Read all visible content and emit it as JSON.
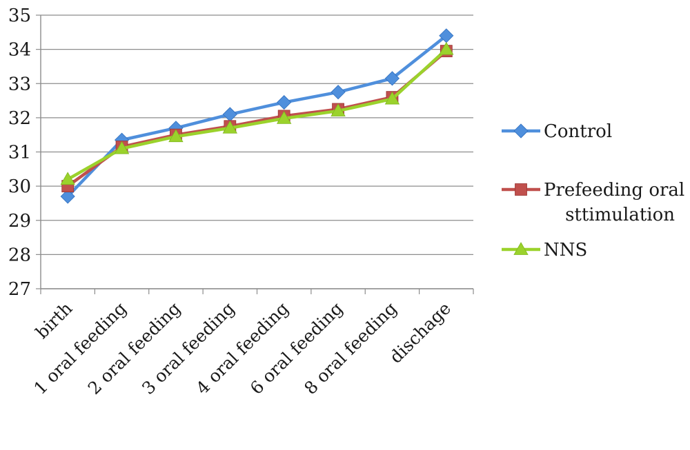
{
  "chart_data": {
    "type": "line",
    "categories": [
      "birth",
      "1 oral feeding",
      "2 oral feeding",
      "3 oral feeding",
      "4 oral feeding",
      "6 oral feeding",
      "8 oral feeding",
      "dischage"
    ],
    "series": [
      {
        "name": "Control",
        "color": "#4f8fdc",
        "marker": "diamond",
        "values": [
          29.7,
          31.35,
          31.7,
          32.1,
          32.45,
          32.75,
          33.15,
          34.4
        ]
      },
      {
        "name": "Prefeeding oral sttimulation",
        "legend_lines": [
          "Prefeeding oral",
          "sttimulation"
        ],
        "color": "#c0504d",
        "marker": "square",
        "values": [
          30.0,
          31.15,
          31.5,
          31.75,
          32.05,
          32.25,
          32.6,
          33.95
        ]
      },
      {
        "name": "NNS",
        "color": "#9bd22c",
        "marker": "triangle",
        "values": [
          30.2,
          31.1,
          31.45,
          31.7,
          31.98,
          32.2,
          32.55,
          34.0
        ]
      }
    ],
    "ylim": [
      27,
      35
    ],
    "yticks": [
      27,
      28,
      29,
      30,
      31,
      32,
      33,
      34,
      35
    ],
    "grid": true,
    "legend_position": "right",
    "title": "",
    "xlabel": "",
    "ylabel": ""
  }
}
